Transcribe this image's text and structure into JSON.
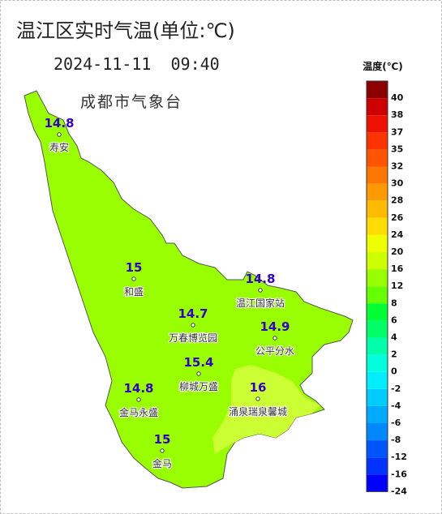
{
  "title": "温江区实时气温(单位:℃)",
  "datetime": "2024-11-11  09:40",
  "agency": "成都市气象台",
  "stations": [
    {
      "name": "寿安",
      "value": 14.8
    },
    {
      "name": "和盛",
      "value": 15
    },
    {
      "name": "温江国家站",
      "value": 14.8
    },
    {
      "name": "万春博览园",
      "value": 14.7
    },
    {
      "name": "公平分水",
      "value": 14.9
    },
    {
      "name": "柳城万盛",
      "value": 15.4
    },
    {
      "name": "涌泉瑞泉馨城",
      "value": 16
    },
    {
      "name": "金马永盛",
      "value": 14.8
    },
    {
      "name": "金马",
      "value": 15
    }
  ],
  "legend": {
    "title": "温度(℃)",
    "ticks": [
      40,
      38,
      37,
      35,
      32,
      30,
      28,
      26,
      24,
      20,
      16,
      12,
      8,
      6,
      4,
      2,
      0,
      -2,
      -4,
      -6,
      -8,
      -12,
      -16,
      -24
    ],
    "colors": [
      "#8b0000",
      "#cc0000",
      "#ee1100",
      "#ff3300",
      "#ff5500",
      "#ff7700",
      "#ff9900",
      "#ffbb00",
      "#ffdd00",
      "#eeff00",
      "#ccff00",
      "#99ff00",
      "#66ff00",
      "#00ff33",
      "#00ff66",
      "#00ffaa",
      "#00ffdd",
      "#00eeff",
      "#00ccff",
      "#00aaff",
      "#0088ff",
      "#0055ff",
      "#0033ff",
      "#0000ff"
    ]
  }
}
